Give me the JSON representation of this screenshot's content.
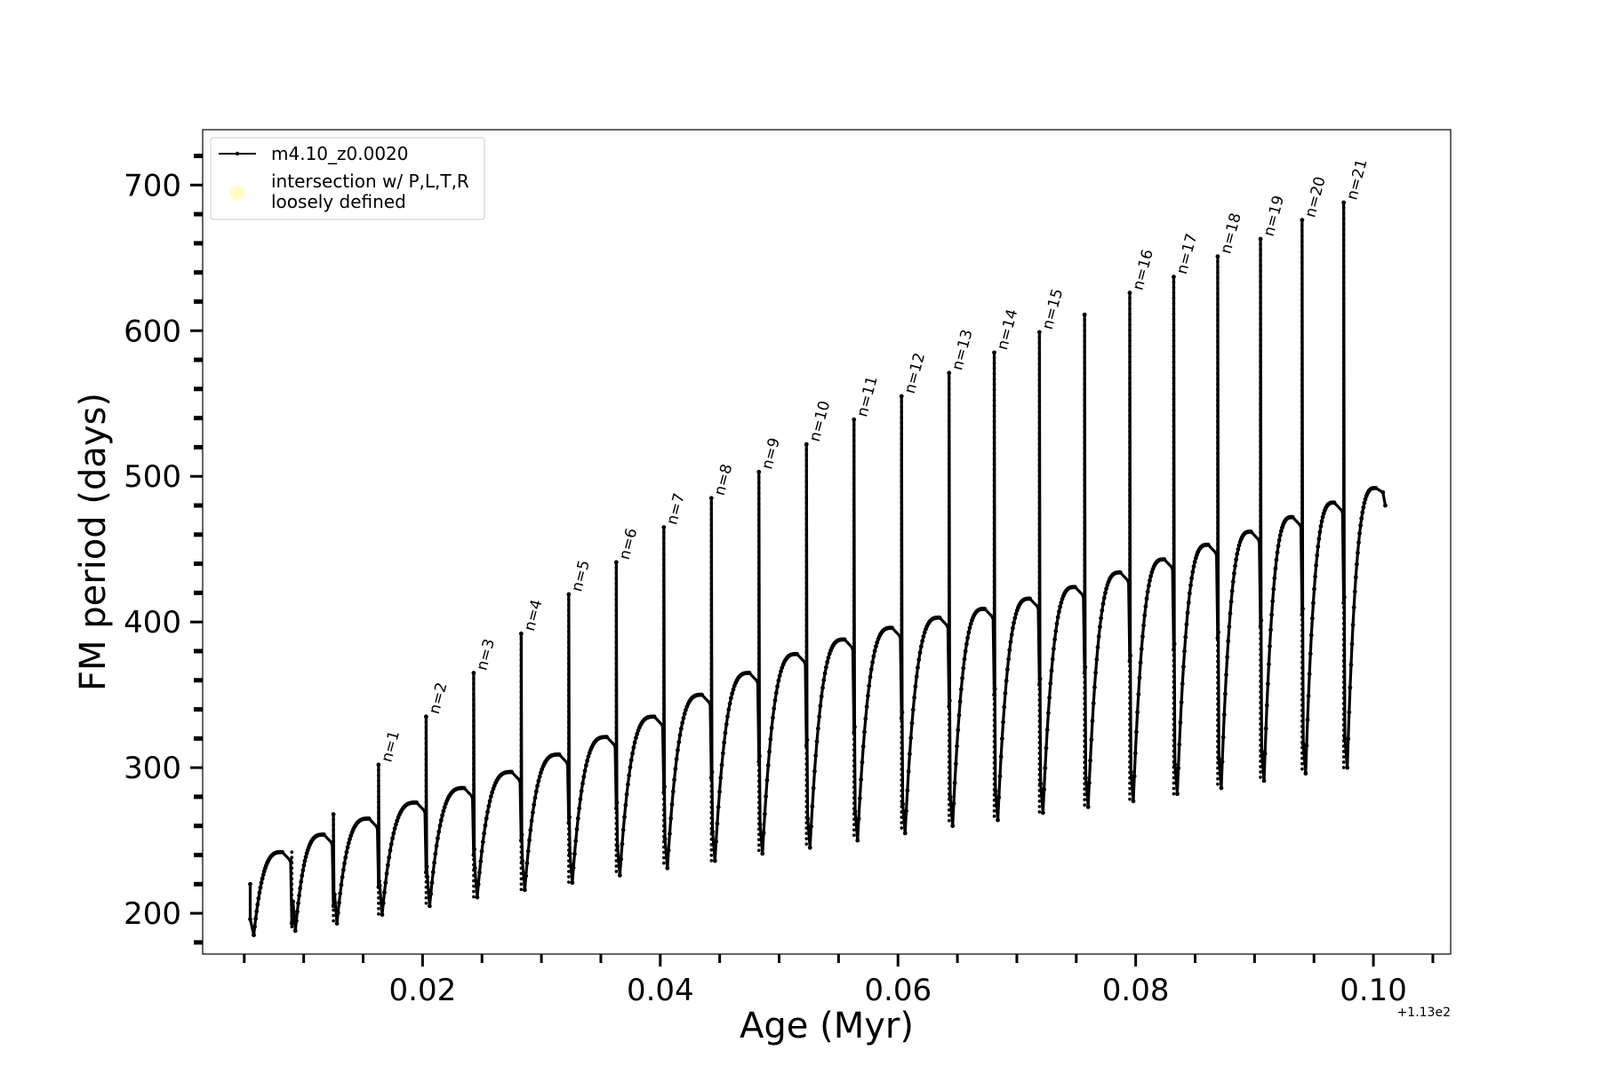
{
  "chart_data": {
    "type": "line",
    "xlabel": "Age (Myr)",
    "ylabel": "FM period (days)",
    "offset_label": "+1.13e2",
    "xlim": [
      0.0015,
      0.1065
    ],
    "ylim": [
      172,
      738
    ],
    "x_ticks": [
      {
        "value": 0.02,
        "label": "0.02"
      },
      {
        "value": 0.04,
        "label": "0.04"
      },
      {
        "value": 0.06,
        "label": "0.06"
      },
      {
        "value": 0.08,
        "label": "0.08"
      },
      {
        "value": 0.1,
        "label": "0.10"
      }
    ],
    "y_ticks": [
      {
        "value": 200,
        "label": "200"
      },
      {
        "value": 300,
        "label": "300"
      },
      {
        "value": 400,
        "label": "400"
      },
      {
        "value": 500,
        "label": "500"
      },
      {
        "value": 600,
        "label": "600"
      },
      {
        "value": 700,
        "label": "700"
      }
    ],
    "x_minor_step": 0.005,
    "y_minor_step": 20,
    "grid": false,
    "legend": {
      "placement": "top-left",
      "entries": [
        {
          "label": "m4.10_z0.0020",
          "style": "line-marker",
          "color": "#000000"
        },
        {
          "label_lines": [
            "intersection w/ P,L,T,R",
            "loosely defined"
          ],
          "style": "circle",
          "color": "#ffffc0"
        }
      ]
    },
    "series": [
      {
        "name": "m4.10_z0.0020",
        "color": "#000000",
        "start_x": 0.0055,
        "start_top": 220,
        "end_x": 0.101,
        "end_value": 480,
        "end_peak": 492,
        "pulses": [
          {
            "x": 0.009,
            "peak": 242,
            "drop": 193,
            "spike": null,
            "min": 188
          },
          {
            "x": 0.0125,
            "peak": 254,
            "drop": 205,
            "spike": 268,
            "min": 193
          },
          {
            "x": 0.0163,
            "peak": 265,
            "drop": 218,
            "spike": 302,
            "min": 199
          },
          {
            "x": 0.0203,
            "peak": 276,
            "drop": 228,
            "spike": 335,
            "min": 205
          },
          {
            "x": 0.0243,
            "peak": 286,
            "drop": 240,
            "spike": 365,
            "min": 211
          },
          {
            "x": 0.0283,
            "peak": 297,
            "drop": 250,
            "spike": 392,
            "min": 216
          },
          {
            "x": 0.0323,
            "peak": 309,
            "drop": 262,
            "spike": 419,
            "min": 221
          },
          {
            "x": 0.0363,
            "peak": 321,
            "drop": 272,
            "spike": 441,
            "min": 226
          },
          {
            "x": 0.0403,
            "peak": 335,
            "drop": 283,
            "spike": 465,
            "min": 231
          },
          {
            "x": 0.0443,
            "peak": 350,
            "drop": 293,
            "spike": 485,
            "min": 236
          },
          {
            "x": 0.0483,
            "peak": 365,
            "drop": 304,
            "spike": 503,
            "min": 241
          },
          {
            "x": 0.0523,
            "peak": 378,
            "drop": 315,
            "spike": 522,
            "min": 245
          },
          {
            "x": 0.0563,
            "peak": 388,
            "drop": 324,
            "spike": 539,
            "min": 250
          },
          {
            "x": 0.0603,
            "peak": 396,
            "drop": 334,
            "spike": 555,
            "min": 255
          },
          {
            "x": 0.0643,
            "peak": 403,
            "drop": 342,
            "spike": 571,
            "min": 260
          },
          {
            "x": 0.0681,
            "peak": 409,
            "drop": 350,
            "spike": 585,
            "min": 264
          },
          {
            "x": 0.0719,
            "peak": 416,
            "drop": 357,
            "spike": 599,
            "min": 269
          },
          {
            "x": 0.0757,
            "peak": 424,
            "drop": 365,
            "spike": 611,
            "min": 273
          },
          {
            "x": 0.0795,
            "peak": 434,
            "drop": 373,
            "spike": 626,
            "min": 277
          },
          {
            "x": 0.0832,
            "peak": 443,
            "drop": 381,
            "spike": 637,
            "min": 282
          },
          {
            "x": 0.0869,
            "peak": 453,
            "drop": 389,
            "spike": 651,
            "min": 286
          },
          {
            "x": 0.0905,
            "peak": 462,
            "drop": 397,
            "spike": 663,
            "min": 291
          },
          {
            "x": 0.094,
            "peak": 472,
            "drop": 405,
            "spike": 676,
            "min": 296
          },
          {
            "x": 0.0975,
            "peak": 482,
            "drop": 413,
            "spike": 688,
            "min": 300
          }
        ]
      }
    ],
    "annotations": [
      {
        "text": "n=1",
        "x": 0.0163,
        "y": 302
      },
      {
        "text": "n=2",
        "x": 0.0203,
        "y": 335
      },
      {
        "text": "n=3",
        "x": 0.0243,
        "y": 365
      },
      {
        "text": "n=4",
        "x": 0.0283,
        "y": 392
      },
      {
        "text": "n=5",
        "x": 0.0323,
        "y": 419
      },
      {
        "text": "n=6",
        "x": 0.0363,
        "y": 441
      },
      {
        "text": "n=7",
        "x": 0.0403,
        "y": 465
      },
      {
        "text": "n=8",
        "x": 0.0443,
        "y": 485
      },
      {
        "text": "n=9",
        "x": 0.0483,
        "y": 503
      },
      {
        "text": "n=10",
        "x": 0.0523,
        "y": 522
      },
      {
        "text": "n=11",
        "x": 0.0563,
        "y": 539
      },
      {
        "text": "n=12",
        "x": 0.0603,
        "y": 555
      },
      {
        "text": "n=13",
        "x": 0.0643,
        "y": 571
      },
      {
        "text": "n=14",
        "x": 0.0681,
        "y": 585
      },
      {
        "text": "n=15",
        "x": 0.0719,
        "y": 599
      },
      {
        "text": "n=16",
        "x": 0.0795,
        "y": 626
      },
      {
        "text": "n=17",
        "x": 0.0832,
        "y": 637
      },
      {
        "text": "n=18",
        "x": 0.0869,
        "y": 651
      },
      {
        "text": "n=19",
        "x": 0.0905,
        "y": 663
      },
      {
        "text": "n=20",
        "x": 0.094,
        "y": 676
      },
      {
        "text": "n=21",
        "x": 0.0975,
        "y": 688
      }
    ]
  }
}
